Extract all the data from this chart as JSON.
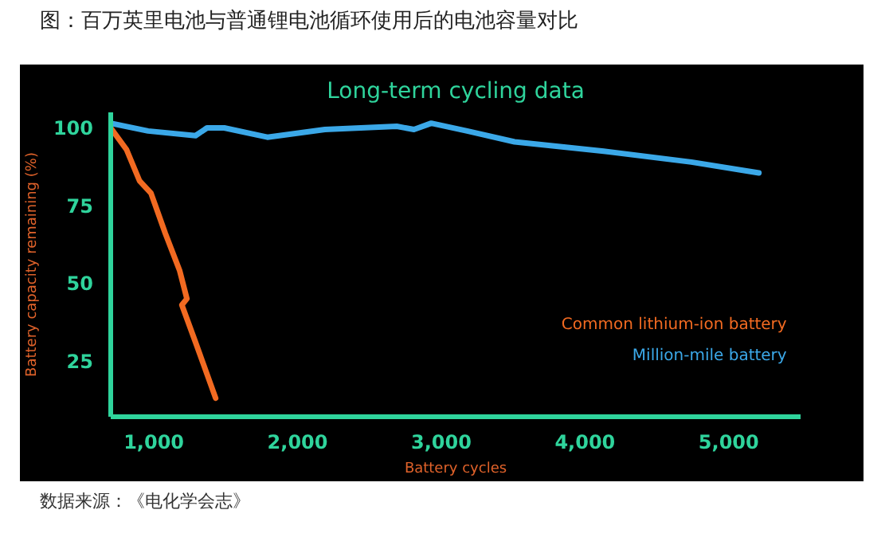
{
  "chart_data": {
    "type": "line",
    "title": "图：百万英里电池与普通锂电池循环使用后的电池容量对比",
    "subtitle": "Long-term cycling data",
    "xlabel": "Battery cycles",
    "ylabel": "Battery capacity remaining (%)",
    "annotations": [
      "数据来源：《电化学会志》"
    ],
    "xlim": [
      700,
      5500
    ],
    "xticks": [
      {
        "value": 1000,
        "label": "1,000"
      },
      {
        "value": 2000,
        "label": "2,000"
      },
      {
        "value": 3000,
        "label": "3,000"
      },
      {
        "value": 4000,
        "label": "4,000"
      },
      {
        "value": 5000,
        "label": "5,000"
      }
    ],
    "ylim": [
      7,
      105
    ],
    "yticks": [
      25,
      50,
      75,
      100
    ],
    "grid": false,
    "legend": "bottom right",
    "marker": "none",
    "line_style": "solid",
    "series": [
      {
        "name": "Common lithium-ion battery",
        "color": "#f26a21",
        "x": [
          700,
          810,
          900,
          980,
          1080,
          1180,
          1230,
          1195,
          1290,
          1430
        ],
        "values": [
          100,
          93,
          83,
          79,
          66,
          54,
          45,
          43,
          31,
          13
        ]
      },
      {
        "name": "Million-mile battery",
        "color": "#3ba8e8",
        "x": [
          700,
          960,
          1290,
          1370,
          1490,
          1790,
          2190,
          2690,
          2810,
          2900,
          2930,
          3180,
          3510,
          4130,
          4740,
          5210
        ],
        "values": [
          101.5,
          99,
          97.5,
          100,
          100,
          97,
          99.5,
          100.5,
          99.5,
          101,
          101.5,
          99,
          95.5,
          92.5,
          89,
          85.5
        ]
      }
    ]
  }
}
